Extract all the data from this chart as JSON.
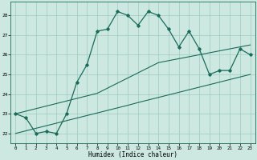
{
  "xlabel": "Humidex (Indice chaleur)",
  "bg_color": "#cce8e0",
  "grid_color": "#9cccc0",
  "line_color": "#1a6b5a",
  "xlim": [
    -0.5,
    23.5
  ],
  "ylim": [
    21.5,
    28.7
  ],
  "xticks": [
    0,
    1,
    2,
    3,
    4,
    5,
    6,
    7,
    8,
    9,
    10,
    11,
    12,
    13,
    14,
    15,
    16,
    17,
    18,
    19,
    20,
    21,
    22,
    23
  ],
  "yticks": [
    22,
    23,
    24,
    25,
    26,
    27,
    28
  ],
  "main_y": [
    23.0,
    22.8,
    22.0,
    22.1,
    22.0,
    23.0,
    24.6,
    25.5,
    27.2,
    27.3,
    28.2,
    28.0,
    27.5,
    28.2,
    28.0,
    27.3,
    26.4,
    27.2,
    26.3,
    25.0,
    25.2,
    25.2,
    26.3,
    26.0
  ],
  "reg_low_y": [
    22.0,
    22.13,
    22.26,
    22.39,
    22.52,
    22.65,
    22.78,
    22.91,
    23.04,
    23.17,
    23.3,
    23.43,
    23.57,
    23.7,
    23.83,
    23.96,
    24.09,
    24.22,
    24.35,
    24.48,
    24.61,
    24.74,
    24.87,
    25.0
  ],
  "reg_high_y": [
    23.0,
    23.13,
    23.26,
    23.39,
    23.52,
    23.65,
    23.78,
    23.91,
    24.04,
    24.3,
    24.56,
    24.82,
    25.08,
    25.34,
    25.6,
    25.7,
    25.8,
    25.9,
    26.0,
    26.1,
    26.2,
    26.3,
    26.4,
    26.5
  ]
}
